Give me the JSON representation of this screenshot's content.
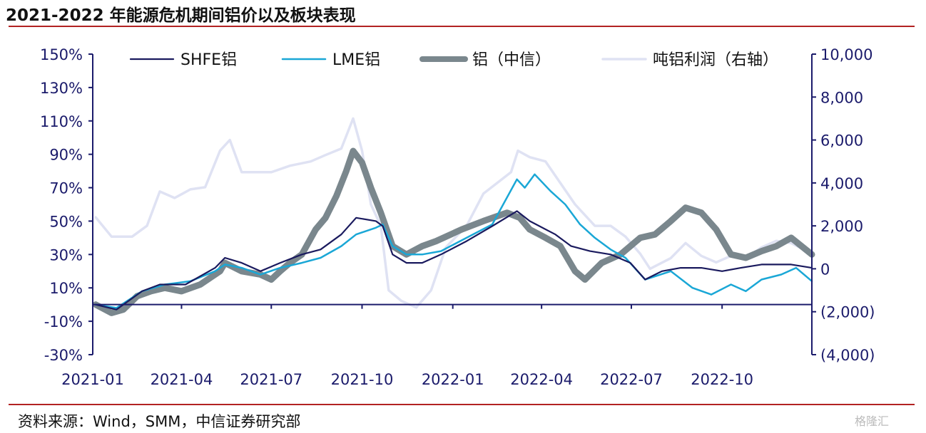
{
  "title": "2021-2022 年能源危机期间铝价以及板块表现",
  "source": "资料来源：Wind，SMM，中信证券研究部",
  "watermark": "格隆汇",
  "chart_data": {
    "type": "line",
    "x_ticks": [
      "2021-01",
      "2021-04",
      "2021-07",
      "2021-10",
      "2022-01",
      "2022-04",
      "2022-07",
      "2022-10"
    ],
    "x_range": [
      "2021-01-01",
      "2022-12-31"
    ],
    "y_left": {
      "range": [
        -30,
        150
      ],
      "ticks": [
        "150%",
        "130%",
        "110%",
        "90%",
        "70%",
        "50%",
        "30%",
        "10%",
        "-10%",
        "-30%"
      ]
    },
    "y_right": {
      "range": [
        -4000,
        10000
      ],
      "ticks": [
        "10,000",
        "8,000",
        "6,000",
        "4,000",
        "2,000",
        "0",
        "(2,000)",
        "(4,000)"
      ]
    },
    "legend_position": "top",
    "series": [
      {
        "name": "SHFE铝",
        "axis": "left",
        "color": "#1a1a5e",
        "width": 2.2,
        "points": [
          [
            "2021-01-04",
            0
          ],
          [
            "2021-01-25",
            -3
          ],
          [
            "2021-02-20",
            8
          ],
          [
            "2021-03-10",
            12
          ],
          [
            "2021-04-05",
            12
          ],
          [
            "2021-05-05",
            22
          ],
          [
            "2021-05-15",
            28
          ],
          [
            "2021-06-01",
            25
          ],
          [
            "2021-06-20",
            20
          ],
          [
            "2021-07-10",
            25
          ],
          [
            "2021-08-01",
            30
          ],
          [
            "2021-08-20",
            33
          ],
          [
            "2021-09-10",
            42
          ],
          [
            "2021-09-25",
            52
          ],
          [
            "2021-10-15",
            50
          ],
          [
            "2021-10-22",
            47
          ],
          [
            "2021-11-01",
            30
          ],
          [
            "2021-11-15",
            25
          ],
          [
            "2021-12-01",
            25
          ],
          [
            "2021-12-20",
            30
          ],
          [
            "2022-01-15",
            38
          ],
          [
            "2022-02-10",
            47
          ],
          [
            "2022-03-07",
            56
          ],
          [
            "2022-03-20",
            50
          ],
          [
            "2022-04-15",
            42
          ],
          [
            "2022-05-01",
            35
          ],
          [
            "2022-05-20",
            32
          ],
          [
            "2022-06-10",
            30
          ],
          [
            "2022-06-30",
            25
          ],
          [
            "2022-07-15",
            15
          ],
          [
            "2022-08-01",
            20
          ],
          [
            "2022-08-20",
            22
          ],
          [
            "2022-09-10",
            22
          ],
          [
            "2022-10-01",
            20
          ],
          [
            "2022-10-20",
            22
          ],
          [
            "2022-11-10",
            24
          ],
          [
            "2022-12-10",
            24
          ],
          [
            "2022-12-31",
            22
          ]
        ]
      },
      {
        "name": "LME铝",
        "axis": "left",
        "color": "#1aa7d6",
        "width": 2.5,
        "points": [
          [
            "2021-01-04",
            0
          ],
          [
            "2021-01-25",
            -2
          ],
          [
            "2021-02-20",
            8
          ],
          [
            "2021-03-15",
            12
          ],
          [
            "2021-04-10",
            14
          ],
          [
            "2021-05-05",
            20
          ],
          [
            "2021-05-15",
            24
          ],
          [
            "2021-06-01",
            22
          ],
          [
            "2021-06-20",
            18
          ],
          [
            "2021-07-10",
            22
          ],
          [
            "2021-08-01",
            25
          ],
          [
            "2021-08-20",
            28
          ],
          [
            "2021-09-10",
            35
          ],
          [
            "2021-09-25",
            42
          ],
          [
            "2021-10-15",
            46
          ],
          [
            "2021-10-22",
            48
          ],
          [
            "2021-11-01",
            35
          ],
          [
            "2021-11-15",
            30
          ],
          [
            "2021-12-01",
            30
          ],
          [
            "2021-12-20",
            32
          ],
          [
            "2022-01-15",
            40
          ],
          [
            "2022-02-10",
            48
          ],
          [
            "2022-03-07",
            75
          ],
          [
            "2022-03-15",
            70
          ],
          [
            "2022-03-25",
            78
          ],
          [
            "2022-04-10",
            68
          ],
          [
            "2022-04-25",
            60
          ],
          [
            "2022-05-10",
            48
          ],
          [
            "2022-05-25",
            40
          ],
          [
            "2022-06-10",
            33
          ],
          [
            "2022-06-25",
            28
          ],
          [
            "2022-07-15",
            15
          ],
          [
            "2022-08-10",
            20
          ],
          [
            "2022-09-01",
            10
          ],
          [
            "2022-09-20",
            6
          ],
          [
            "2022-10-10",
            12
          ],
          [
            "2022-10-25",
            8
          ],
          [
            "2022-11-10",
            15
          ],
          [
            "2022-11-30",
            18
          ],
          [
            "2022-12-15",
            22
          ],
          [
            "2022-12-31",
            14
          ]
        ]
      },
      {
        "name": "铝（中信）",
        "axis": "left",
        "color": "#7a878d",
        "width": 9,
        "points": [
          [
            "2021-01-04",
            0
          ],
          [
            "2021-01-20",
            -5
          ],
          [
            "2021-02-01",
            -3
          ],
          [
            "2021-02-15",
            5
          ],
          [
            "2021-03-01",
            8
          ],
          [
            "2021-03-15",
            10
          ],
          [
            "2021-04-01",
            8
          ],
          [
            "2021-04-20",
            12
          ],
          [
            "2021-05-10",
            20
          ],
          [
            "2021-05-15",
            25
          ],
          [
            "2021-06-01",
            20
          ],
          [
            "2021-06-20",
            18
          ],
          [
            "2021-07-01",
            15
          ],
          [
            "2021-07-10",
            20
          ],
          [
            "2021-07-20",
            25
          ],
          [
            "2021-08-01",
            30
          ],
          [
            "2021-08-15",
            45
          ],
          [
            "2021-08-25",
            52
          ],
          [
            "2021-09-05",
            65
          ],
          [
            "2021-09-15",
            80
          ],
          [
            "2021-09-22",
            92
          ],
          [
            "2021-10-01",
            85
          ],
          [
            "2021-10-10",
            70
          ],
          [
            "2021-10-20",
            55
          ],
          [
            "2021-11-01",
            35
          ],
          [
            "2021-11-15",
            30
          ],
          [
            "2021-12-01",
            35
          ],
          [
            "2021-12-15",
            38
          ],
          [
            "2022-01-10",
            45
          ],
          [
            "2022-02-01",
            50
          ],
          [
            "2022-02-25",
            55
          ],
          [
            "2022-03-10",
            52
          ],
          [
            "2022-03-20",
            45
          ],
          [
            "2022-04-05",
            40
          ],
          [
            "2022-04-20",
            35
          ],
          [
            "2022-05-05",
            20
          ],
          [
            "2022-05-15",
            15
          ],
          [
            "2022-06-01",
            25
          ],
          [
            "2022-06-20",
            30
          ],
          [
            "2022-07-10",
            40
          ],
          [
            "2022-07-25",
            42
          ],
          [
            "2022-08-10",
            50
          ],
          [
            "2022-08-25",
            58
          ],
          [
            "2022-09-10",
            55
          ],
          [
            "2022-09-25",
            45
          ],
          [
            "2022-10-10",
            30
          ],
          [
            "2022-10-25",
            28
          ],
          [
            "2022-11-10",
            32
          ],
          [
            "2022-11-25",
            35
          ],
          [
            "2022-12-10",
            40
          ],
          [
            "2022-12-31",
            30
          ]
        ]
      },
      {
        "name": "吨铝利润（右轴）",
        "axis": "right",
        "color": "#dfe2f3",
        "width": 3.5,
        "points": [
          [
            "2021-01-04",
            2400
          ],
          [
            "2021-01-20",
            1500
          ],
          [
            "2021-02-10",
            1500
          ],
          [
            "2021-02-25",
            2000
          ],
          [
            "2021-03-10",
            3600
          ],
          [
            "2021-03-25",
            3300
          ],
          [
            "2021-04-10",
            3700
          ],
          [
            "2021-04-25",
            3800
          ],
          [
            "2021-05-10",
            5500
          ],
          [
            "2021-05-20",
            6000
          ],
          [
            "2021-06-01",
            4500
          ],
          [
            "2021-06-15",
            4500
          ],
          [
            "2021-07-01",
            4500
          ],
          [
            "2021-07-20",
            4800
          ],
          [
            "2021-08-10",
            5000
          ],
          [
            "2021-08-25",
            5300
          ],
          [
            "2021-09-10",
            5600
          ],
          [
            "2021-09-22",
            7000
          ],
          [
            "2021-10-01",
            5500
          ],
          [
            "2021-10-10",
            3000
          ],
          [
            "2021-10-20",
            2000
          ],
          [
            "2021-10-28",
            -1000
          ],
          [
            "2021-11-10",
            -1500
          ],
          [
            "2021-11-25",
            -1800
          ],
          [
            "2021-12-10",
            -1000
          ],
          [
            "2021-12-25",
            1000
          ],
          [
            "2022-01-15",
            2000
          ],
          [
            "2022-02-01",
            3500
          ],
          [
            "2022-02-15",
            4000
          ],
          [
            "2022-03-01",
            4500
          ],
          [
            "2022-03-08",
            5500
          ],
          [
            "2022-03-20",
            5200
          ],
          [
            "2022-04-05",
            5000
          ],
          [
            "2022-04-20",
            4000
          ],
          [
            "2022-05-05",
            3000
          ],
          [
            "2022-05-25",
            2000
          ],
          [
            "2022-06-10",
            2000
          ],
          [
            "2022-06-25",
            1500
          ],
          [
            "2022-07-10",
            700
          ],
          [
            "2022-07-20",
            0
          ],
          [
            "2022-08-10",
            500
          ],
          [
            "2022-08-25",
            1200
          ],
          [
            "2022-09-10",
            600
          ],
          [
            "2022-09-25",
            300
          ],
          [
            "2022-10-10",
            600
          ],
          [
            "2022-10-25",
            500
          ],
          [
            "2022-11-10",
            1000
          ],
          [
            "2022-11-25",
            1300
          ],
          [
            "2022-12-10",
            1200
          ],
          [
            "2022-12-31",
            700
          ]
        ]
      }
    ]
  }
}
